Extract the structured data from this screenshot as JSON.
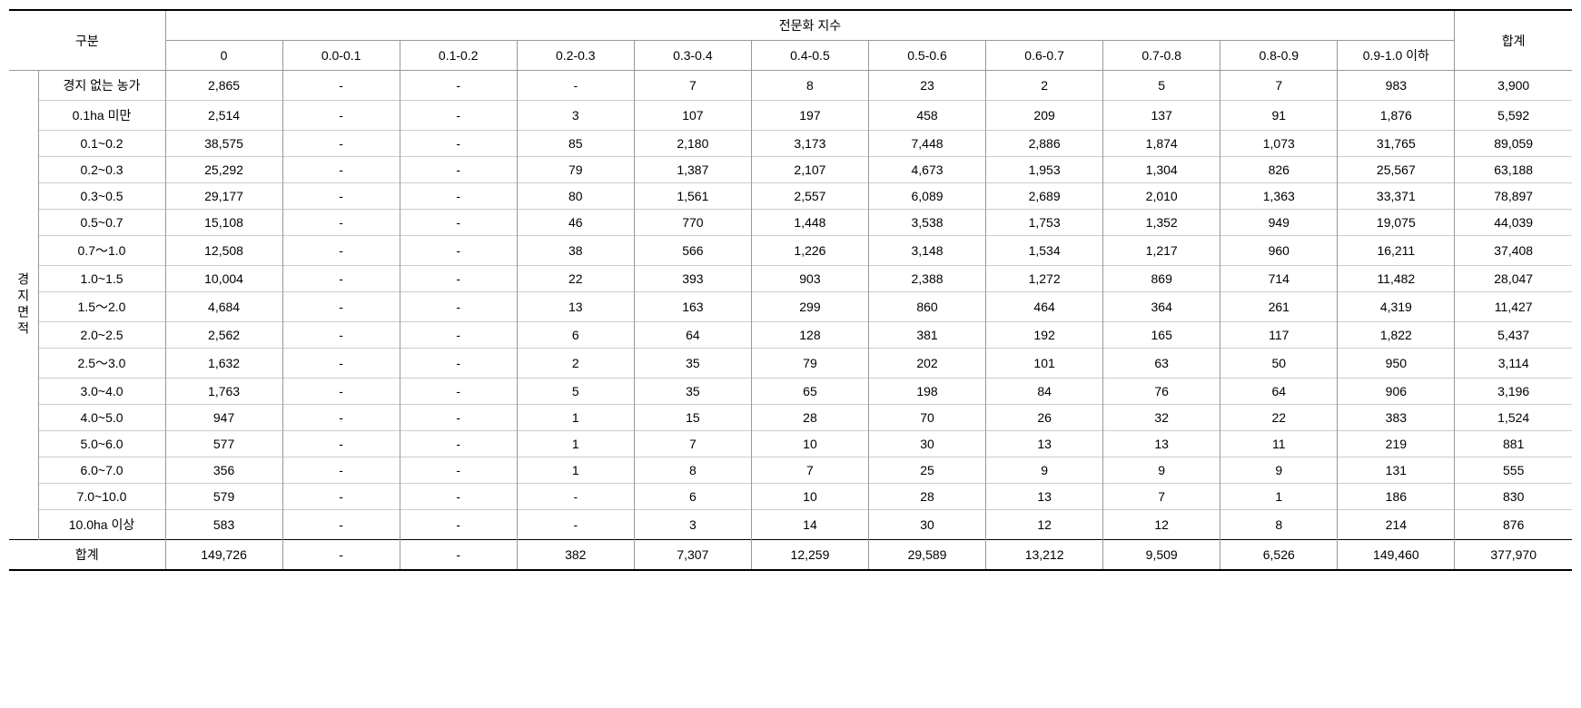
{
  "headers": {
    "category": "구분",
    "specialization_index": "전문화 지수",
    "total": "합계",
    "row_category_label": "경지면적",
    "sub_columns": [
      "0",
      "0.0-0.1",
      "0.1-0.2",
      "0.2-0.3",
      "0.3-0.4",
      "0.4-0.5",
      "0.5-0.6",
      "0.6-0.7",
      "0.7-0.8",
      "0.8-0.9",
      "0.9-1.0 이하"
    ]
  },
  "rows": [
    {
      "label": "경지 없는 농가",
      "values": [
        "2,865",
        "-",
        "-",
        "-",
        "7",
        "8",
        "23",
        "2",
        "5",
        "7",
        "983"
      ],
      "total": "3,900"
    },
    {
      "label": "0.1ha 미만",
      "values": [
        "2,514",
        "-",
        "-",
        "3",
        "107",
        "197",
        "458",
        "209",
        "137",
        "91",
        "1,876"
      ],
      "total": "5,592"
    },
    {
      "label": "0.1~0.2",
      "values": [
        "38,575",
        "-",
        "-",
        "85",
        "2,180",
        "3,173",
        "7,448",
        "2,886",
        "1,874",
        "1,073",
        "31,765"
      ],
      "total": "89,059"
    },
    {
      "label": "0.2~0.3",
      "values": [
        "25,292",
        "-",
        "-",
        "79",
        "1,387",
        "2,107",
        "4,673",
        "1,953",
        "1,304",
        "826",
        "25,567"
      ],
      "total": "63,188"
    },
    {
      "label": "0.3~0.5",
      "values": [
        "29,177",
        "-",
        "-",
        "80",
        "1,561",
        "2,557",
        "6,089",
        "2,689",
        "2,010",
        "1,363",
        "33,371"
      ],
      "total": "78,897"
    },
    {
      "label": "0.5~0.7",
      "values": [
        "15,108",
        "-",
        "-",
        "46",
        "770",
        "1,448",
        "3,538",
        "1,753",
        "1,352",
        "949",
        "19,075"
      ],
      "total": "44,039"
    },
    {
      "label": "0.7～1.0",
      "values": [
        "12,508",
        "-",
        "-",
        "38",
        "566",
        "1,226",
        "3,148",
        "1,534",
        "1,217",
        "960",
        "16,211"
      ],
      "total": "37,408"
    },
    {
      "label": "1.0~1.5",
      "values": [
        "10,004",
        "-",
        "-",
        "22",
        "393",
        "903",
        "2,388",
        "1,272",
        "869",
        "714",
        "11,482"
      ],
      "total": "28,047"
    },
    {
      "label": "1.5～2.0",
      "values": [
        "4,684",
        "-",
        "-",
        "13",
        "163",
        "299",
        "860",
        "464",
        "364",
        "261",
        "4,319"
      ],
      "total": "11,427"
    },
    {
      "label": "2.0~2.5",
      "values": [
        "2,562",
        "-",
        "-",
        "6",
        "64",
        "128",
        "381",
        "192",
        "165",
        "117",
        "1,822"
      ],
      "total": "5,437"
    },
    {
      "label": "2.5～3.0",
      "values": [
        "1,632",
        "-",
        "-",
        "2",
        "35",
        "79",
        "202",
        "101",
        "63",
        "50",
        "950"
      ],
      "total": "3,114"
    },
    {
      "label": "3.0~4.0",
      "values": [
        "1,763",
        "-",
        "-",
        "5",
        "35",
        "65",
        "198",
        "84",
        "76",
        "64",
        "906"
      ],
      "total": "3,196"
    },
    {
      "label": "4.0~5.0",
      "values": [
        "947",
        "-",
        "-",
        "1",
        "15",
        "28",
        "70",
        "26",
        "32",
        "22",
        "383"
      ],
      "total": "1,524"
    },
    {
      "label": "5.0~6.0",
      "values": [
        "577",
        "-",
        "-",
        "1",
        "7",
        "10",
        "30",
        "13",
        "13",
        "11",
        "219"
      ],
      "total": "881"
    },
    {
      "label": "6.0~7.0",
      "values": [
        "356",
        "-",
        "-",
        "1",
        "8",
        "7",
        "25",
        "9",
        "9",
        "9",
        "131"
      ],
      "total": "555"
    },
    {
      "label": "7.0~10.0",
      "values": [
        "579",
        "-",
        "-",
        "-",
        "6",
        "10",
        "28",
        "13",
        "7",
        "1",
        "186"
      ],
      "total": "830"
    },
    {
      "label": "10.0ha 이상",
      "values": [
        "583",
        "-",
        "-",
        "-",
        "3",
        "14",
        "30",
        "12",
        "12",
        "8",
        "214"
      ],
      "total": "876"
    }
  ],
  "total_row": {
    "label": "합계",
    "values": [
      "149,726",
      "-",
      "-",
      "382",
      "7,307",
      "12,259",
      "29,589",
      "13,212",
      "9,509",
      "6,526",
      "149,460"
    ],
    "total": "377,970"
  },
  "style": {
    "font_family": "Malgun Gothic",
    "font_size_pt": 14,
    "background_color": "#ffffff",
    "text_color": "#000000",
    "border_heavy": "#000000",
    "border_light": "#999999",
    "border_row": "#cccccc"
  }
}
